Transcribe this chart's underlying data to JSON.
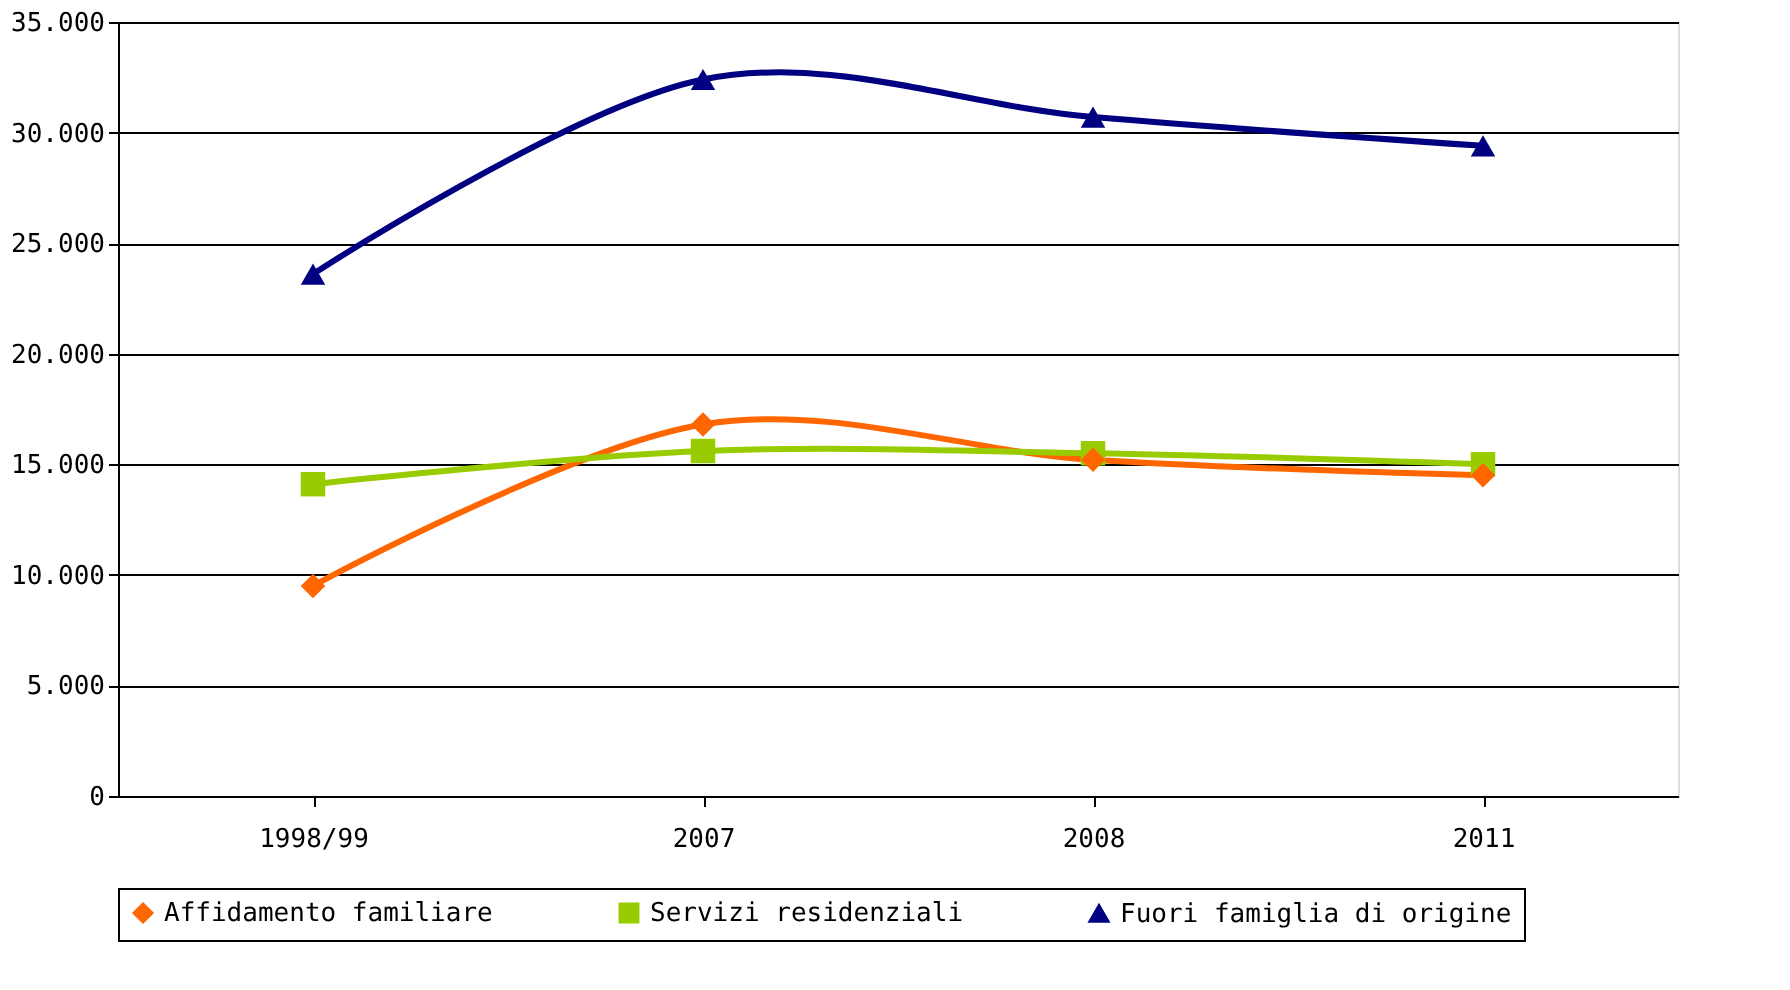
{
  "chart_data": {
    "type": "line",
    "categories": [
      "1998/99",
      "2007",
      "2008",
      "2011"
    ],
    "series": [
      {
        "name": "Affidamento familiare",
        "color": "#ff6600",
        "marker": "diamond",
        "values": [
          9500,
          16800,
          15200,
          14500
        ]
      },
      {
        "name": "Servizi residenziali",
        "color": "#99cc00",
        "marker": "square",
        "values": [
          14100,
          15600,
          15500,
          15000
        ]
      },
      {
        "name": "Fuori famiglia di origine",
        "color": "#000080",
        "marker": "triangle",
        "values": [
          23600,
          32400,
          30700,
          29400
        ]
      }
    ],
    "ylim": [
      0,
      35000
    ],
    "yticks": [
      0,
      {
        "value": 5000,
        "label": "5.000"
      },
      {
        "value": 10000,
        "label": "10.000"
      },
      {
        "value": 15000,
        "label": "15.000"
      },
      {
        "value": 20000,
        "label": "20.000"
      },
      {
        "value": 25000,
        "label": "25.000"
      },
      {
        "value": 30000,
        "label": "30.000"
      },
      {
        "value": 35000,
        "label": "35.000"
      }
    ],
    "grid": "y",
    "legend": "bottom",
    "line_style": "solid"
  }
}
